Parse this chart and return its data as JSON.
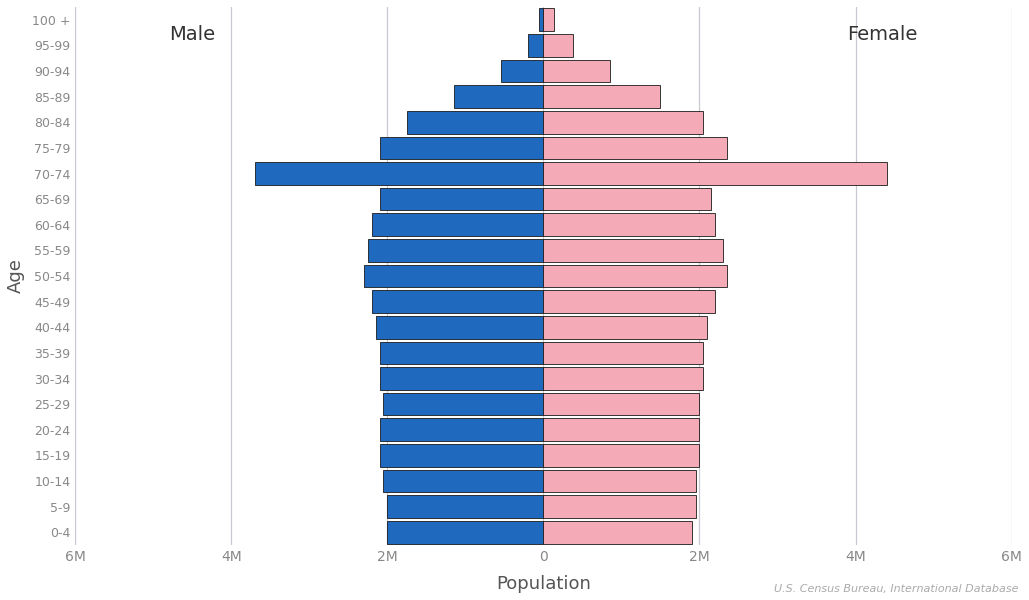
{
  "age_groups": [
    "0-4",
    "5-9",
    "10-14",
    "15-19",
    "20-24",
    "25-29",
    "30-34",
    "35-39",
    "40-44",
    "45-49",
    "50-54",
    "55-59",
    "60-64",
    "65-69",
    "70-74",
    "75-79",
    "80-84",
    "85-89",
    "90-94",
    "95-99",
    "100 +"
  ],
  "male": [
    2000000,
    2000000,
    2050000,
    2100000,
    2100000,
    2050000,
    2100000,
    2100000,
    2150000,
    2200000,
    2300000,
    2250000,
    2200000,
    2100000,
    3700000,
    2100000,
    1750000,
    1150000,
    550000,
    200000,
    55000
  ],
  "female": [
    1900000,
    1950000,
    1950000,
    2000000,
    2000000,
    2000000,
    2050000,
    2050000,
    2100000,
    2200000,
    2350000,
    2300000,
    2200000,
    2150000,
    4400000,
    2350000,
    2050000,
    1500000,
    850000,
    380000,
    140000
  ],
  "male_color": "#1f6abf",
  "female_color": "#f5aab8",
  "edge_color": "#1a1a1a",
  "background_color": "#ffffff",
  "xlabel": "Population",
  "ylabel": "Age",
  "xlim": 6000000,
  "source_text": "U.S. Census Bureau, International Database",
  "male_label": "Male",
  "female_label": "Female",
  "grid_color": "#c8c8d0",
  "tick_color": "#888888",
  "label_color": "#555555"
}
